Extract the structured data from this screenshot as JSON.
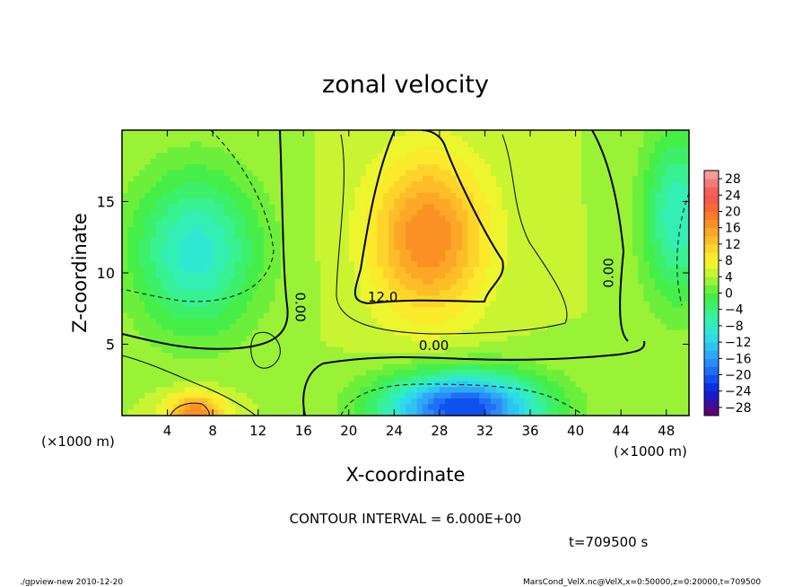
{
  "chart_data": {
    "type": "heatmap",
    "title": "zonal velocity",
    "xlabel": "X-coordinate",
    "ylabel": "Z-coordinate",
    "x_unit_note": "(×1000 m)",
    "x_ticks": [
      4,
      8,
      12,
      16,
      20,
      24,
      28,
      32,
      36,
      40,
      44,
      48
    ],
    "y_ticks": [
      5,
      10,
      15
    ],
    "xlim": [
      0,
      50
    ],
    "ylim": [
      0,
      20
    ],
    "colorbar": {
      "levels": [
        -30,
        -28,
        -26,
        -24,
        -22,
        -20,
        -18,
        -16,
        -14,
        -12,
        -10,
        -8,
        -6,
        -4,
        -2,
        0,
        2,
        4,
        6,
        8,
        10,
        12,
        14,
        16,
        18,
        20,
        22,
        24,
        26,
        28,
        30
      ],
      "colors": [
        "#5a007a",
        "#3a0ca0",
        "#1a1acd",
        "#0a30e0",
        "#1050ee",
        "#1e6ef6",
        "#2a8cf8",
        "#2fa8f6",
        "#2ec4f2",
        "#2edaea",
        "#30e8d2",
        "#33efb4",
        "#38f190",
        "#3df06a",
        "#46ee48",
        "#6cef3a",
        "#9af236",
        "#c8f432",
        "#ecf52e",
        "#fcea2c",
        "#fdd52a",
        "#fdbd28",
        "#fca826",
        "#fb9124",
        "#f97a2a",
        "#f76838",
        "#f55a4a",
        "#f4605e",
        "#f47a7a",
        "#f49a9a"
      ],
      "tick_labels": [
        "28",
        "24",
        "20",
        "16",
        "12",
        "8",
        "4",
        "0",
        "−4",
        "−8",
        "−12",
        "−16",
        "−20",
        "−24",
        "−28"
      ],
      "tick_values": [
        28,
        24,
        20,
        16,
        12,
        8,
        4,
        0,
        -4,
        -8,
        -12,
        -16,
        -20,
        -24,
        -28
      ]
    },
    "regions": [
      {
        "name": "upper-left low",
        "center": [
          6.5,
          11.5
        ],
        "value": -9,
        "spread": [
          5.5,
          5.5
        ]
      },
      {
        "name": "central-upper jet",
        "center": [
          27,
          12.5
        ],
        "value": 18,
        "spread": [
          5,
          5.5
        ]
      },
      {
        "name": "lower-center low",
        "center": [
          30,
          0.5
        ],
        "value": -22,
        "spread": [
          7,
          2.5
        ]
      },
      {
        "name": "bottom-left high",
        "center": [
          6.5,
          0.3
        ],
        "value": 18,
        "spread": [
          2.5,
          1.2
        ]
      },
      {
        "name": "right low",
        "center": [
          49,
          14
        ],
        "value": -8,
        "spread": [
          3,
          6
        ]
      }
    ],
    "contour_labels": [
      {
        "text": "12.0",
        "x": 23,
        "z": 8
      },
      {
        "text": "0.00",
        "x": 27.5,
        "z": 4.6
      },
      {
        "text": "0.00",
        "x": 15.3,
        "z": 7.6,
        "rotate": 90
      },
      {
        "text": "0.00",
        "x": 43.3,
        "z": 10,
        "rotate": -90
      }
    ]
  },
  "footer": {
    "contour_interval": "CONTOUR INTERVAL = 6.000E+00",
    "time": "t=709500 s",
    "program": "./gpview-new   2010-12-20",
    "source": "MarsCond_VelX.nc@VelX,x=0:50000,z=0:20000,t=709500"
  }
}
